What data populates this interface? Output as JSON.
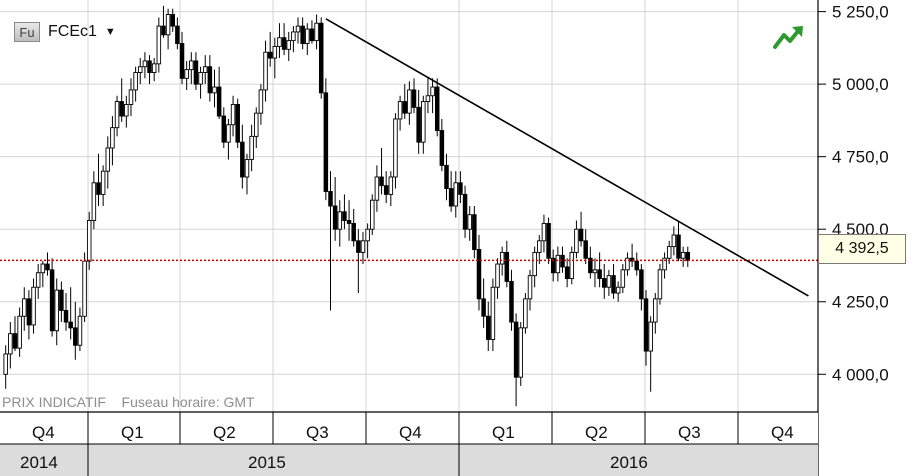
{
  "header": {
    "instrument_badge": "Fu",
    "symbol": "FCEc1",
    "dropdown_glyph": "▼"
  },
  "footer": {
    "price_type": "PRIX INDICATIF",
    "timezone": "Fuseau horaire: GMT"
  },
  "trend_icon_color": "#2e9a2e",
  "last_price_label": "4 392,5",
  "chart_data": {
    "type": "candlestick",
    "ylim": [
      3870,
      5290
    ],
    "yticks": [
      4000,
      4250,
      4500,
      4750,
      5000,
      5250
    ],
    "ytick_labels": [
      "4 000,0",
      "4 250,0",
      "4 500,0",
      "4 750,0",
      "5 000,0",
      "5 250,0"
    ],
    "last_price": 4392.5,
    "quarters": [
      "Q4",
      "Q1",
      "Q2",
      "Q3",
      "Q4",
      "Q1",
      "Q2",
      "Q3",
      "Q4"
    ],
    "years": [
      "2014",
      "2015",
      "2016"
    ],
    "trendline": {
      "from": {
        "week": 69,
        "value": 5225
      },
      "to": {
        "week": 173,
        "value": 4270
      }
    },
    "candles": [
      [
        4000,
        4100,
        3950,
        4070
      ],
      [
        4070,
        4180,
        4020,
        4140
      ],
      [
        4140,
        4200,
        4080,
        4090
      ],
      [
        4090,
        4230,
        4060,
        4200
      ],
      [
        4200,
        4300,
        4150,
        4260
      ],
      [
        4260,
        4290,
        4120,
        4170
      ],
      [
        4170,
        4330,
        4140,
        4300
      ],
      [
        4300,
        4380,
        4260,
        4350
      ],
      [
        4350,
        4390,
        4300,
        4380
      ],
      [
        4380,
        4420,
        4340,
        4360
      ],
      [
        4360,
        4400,
        4130,
        4150
      ],
      [
        4150,
        4330,
        4100,
        4290
      ],
      [
        4290,
        4320,
        4180,
        4220
      ],
      [
        4220,
        4280,
        4150,
        4180
      ],
      [
        4180,
        4300,
        4120,
        4160
      ],
      [
        4160,
        4250,
        4050,
        4100
      ],
      [
        4100,
        4230,
        4080,
        4200
      ],
      [
        4200,
        4420,
        4180,
        4390
      ],
      [
        4390,
        4560,
        4360,
        4530
      ],
      [
        4530,
        4700,
        4500,
        4660
      ],
      [
        4660,
        4760,
        4580,
        4620
      ],
      [
        4620,
        4720,
        4580,
        4700
      ],
      [
        4700,
        4820,
        4640,
        4780
      ],
      [
        4780,
        4890,
        4720,
        4850
      ],
      [
        4850,
        4960,
        4820,
        4940
      ],
      [
        4940,
        5020,
        4870,
        4890
      ],
      [
        4890,
        4960,
        4850,
        4930
      ],
      [
        4930,
        5020,
        4890,
        4980
      ],
      [
        4980,
        5060,
        4940,
        5040
      ],
      [
        5040,
        5090,
        5000,
        5060
      ],
      [
        5060,
        5110,
        5020,
        5080
      ],
      [
        5080,
        5100,
        5000,
        5040
      ],
      [
        5040,
        5090,
        5010,
        5070
      ],
      [
        5070,
        5230,
        5040,
        5200
      ],
      [
        5200,
        5270,
        5160,
        5170
      ],
      [
        5170,
        5260,
        5120,
        5240
      ],
      [
        5240,
        5260,
        5180,
        5200
      ],
      [
        5200,
        5230,
        5120,
        5140
      ],
      [
        5140,
        5180,
        5000,
        5020
      ],
      [
        5020,
        5080,
        4980,
        5050
      ],
      [
        5050,
        5110,
        5000,
        5080
      ],
      [
        5080,
        5110,
        4980,
        5000
      ],
      [
        5000,
        5060,
        4950,
        5040
      ],
      [
        5040,
        5100,
        5000,
        5060
      ],
      [
        5060,
        5100,
        4940,
        4970
      ],
      [
        4970,
        5050,
        4920,
        4990
      ],
      [
        4990,
        5060,
        4880,
        4890
      ],
      [
        4890,
        4920,
        4780,
        4800
      ],
      [
        4800,
        4880,
        4740,
        4860
      ],
      [
        4860,
        4960,
        4820,
        4930
      ],
      [
        4930,
        4950,
        4780,
        4800
      ],
      [
        4800,
        4860,
        4640,
        4680
      ],
      [
        4680,
        4760,
        4620,
        4740
      ],
      [
        4740,
        4860,
        4700,
        4820
      ],
      [
        4820,
        4920,
        4780,
        4900
      ],
      [
        4900,
        5000,
        4860,
        4980
      ],
      [
        4980,
        5150,
        4940,
        5110
      ],
      [
        5110,
        5180,
        5060,
        5090
      ],
      [
        5090,
        5160,
        5020,
        5130
      ],
      [
        5130,
        5210,
        5090,
        5160
      ],
      [
        5160,
        5210,
        5100,
        5120
      ],
      [
        5120,
        5180,
        5080,
        5150
      ],
      [
        5150,
        5200,
        5110,
        5180
      ],
      [
        5180,
        5230,
        5140,
        5200
      ],
      [
        5200,
        5230,
        5120,
        5140
      ],
      [
        5140,
        5210,
        5100,
        5190
      ],
      [
        5190,
        5220,
        5140,
        5150
      ],
      [
        5150,
        5240,
        5120,
        5210
      ],
      [
        5210,
        5230,
        4950,
        4970
      ],
      [
        4970,
        5020,
        4600,
        4630
      ],
      [
        4630,
        4700,
        4220,
        4580
      ],
      [
        4580,
        4680,
        4460,
        4500
      ],
      [
        4500,
        4600,
        4440,
        4560
      ],
      [
        4560,
        4620,
        4500,
        4530
      ],
      [
        4530,
        4600,
        4460,
        4520
      ],
      [
        4520,
        4570,
        4440,
        4460
      ],
      [
        4460,
        4500,
        4280,
        4420
      ],
      [
        4420,
        4490,
        4380,
        4460
      ],
      [
        4460,
        4520,
        4400,
        4500
      ],
      [
        4500,
        4620,
        4480,
        4600
      ],
      [
        4600,
        4720,
        4560,
        4680
      ],
      [
        4680,
        4780,
        4620,
        4650
      ],
      [
        4650,
        4700,
        4590,
        4620
      ],
      [
        4620,
        4700,
        4580,
        4680
      ],
      [
        4680,
        4900,
        4640,
        4880
      ],
      [
        4880,
        4960,
        4840,
        4940
      ],
      [
        4940,
        5000,
        4880,
        4900
      ],
      [
        4900,
        5010,
        4860,
        4980
      ],
      [
        4980,
        5020,
        4900,
        4920
      ],
      [
        4920,
        4980,
        4760,
        4800
      ],
      [
        4800,
        4960,
        4760,
        4940
      ],
      [
        4940,
        5020,
        4900,
        4960
      ],
      [
        4960,
        5020,
        4900,
        4990
      ],
      [
        4990,
        5020,
        4820,
        4840
      ],
      [
        4840,
        4880,
        4700,
        4720
      ],
      [
        4720,
        4760,
        4600,
        4640
      ],
      [
        4640,
        4700,
        4560,
        4580
      ],
      [
        4580,
        4700,
        4540,
        4660
      ],
      [
        4660,
        4700,
        4590,
        4620
      ],
      [
        4620,
        4650,
        4470,
        4500
      ],
      [
        4500,
        4580,
        4460,
        4550
      ],
      [
        4550,
        4580,
        4400,
        4430
      ],
      [
        4430,
        4480,
        4220,
        4260
      ],
      [
        4260,
        4330,
        4160,
        4200
      ],
      [
        4200,
        4250,
        4080,
        4120
      ],
      [
        4120,
        4330,
        4080,
        4300
      ],
      [
        4300,
        4400,
        4260,
        4380
      ],
      [
        4380,
        4440,
        4340,
        4420
      ],
      [
        4420,
        4460,
        4300,
        4320
      ],
      [
        4320,
        4360,
        4150,
        4180
      ],
      [
        4180,
        4210,
        3890,
        3990
      ],
      [
        3990,
        4180,
        3960,
        4160
      ],
      [
        4160,
        4280,
        4140,
        4260
      ],
      [
        4260,
        4360,
        4220,
        4340
      ],
      [
        4340,
        4440,
        4300,
        4420
      ],
      [
        4420,
        4480,
        4380,
        4460
      ],
      [
        4460,
        4550,
        4420,
        4520
      ],
      [
        4520,
        4540,
        4380,
        4400
      ],
      [
        4400,
        4430,
        4320,
        4350
      ],
      [
        4350,
        4440,
        4320,
        4410
      ],
      [
        4410,
        4440,
        4350,
        4370
      ],
      [
        4370,
        4400,
        4300,
        4330
      ],
      [
        4330,
        4440,
        4310,
        4420
      ],
      [
        4420,
        4530,
        4400,
        4500
      ],
      [
        4500,
        4560,
        4440,
        4460
      ],
      [
        4460,
        4500,
        4380,
        4400
      ],
      [
        4400,
        4440,
        4330,
        4350
      ],
      [
        4350,
        4400,
        4300,
        4360
      ],
      [
        4360,
        4420,
        4300,
        4330
      ],
      [
        4330,
        4380,
        4260,
        4300
      ],
      [
        4300,
        4360,
        4270,
        4340
      ],
      [
        4340,
        4380,
        4260,
        4280
      ],
      [
        4280,
        4320,
        4250,
        4300
      ],
      [
        4300,
        4380,
        4280,
        4360
      ],
      [
        4360,
        4420,
        4340,
        4400
      ],
      [
        4400,
        4450,
        4370,
        4390
      ],
      [
        4390,
        4420,
        4340,
        4360
      ],
      [
        4360,
        4380,
        4220,
        4260
      ],
      [
        4260,
        4290,
        4030,
        4080
      ],
      [
        4080,
        4200,
        3940,
        4180
      ],
      [
        4180,
        4280,
        4140,
        4260
      ],
      [
        4260,
        4380,
        4240,
        4360
      ],
      [
        4360,
        4420,
        4330,
        4400
      ],
      [
        4400,
        4460,
        4380,
        4440
      ],
      [
        4440,
        4510,
        4410,
        4480
      ],
      [
        4480,
        4530,
        4390,
        4400
      ],
      [
        4400,
        4440,
        4370,
        4420
      ],
      [
        4420,
        4440,
        4370,
        4392.5
      ]
    ]
  }
}
